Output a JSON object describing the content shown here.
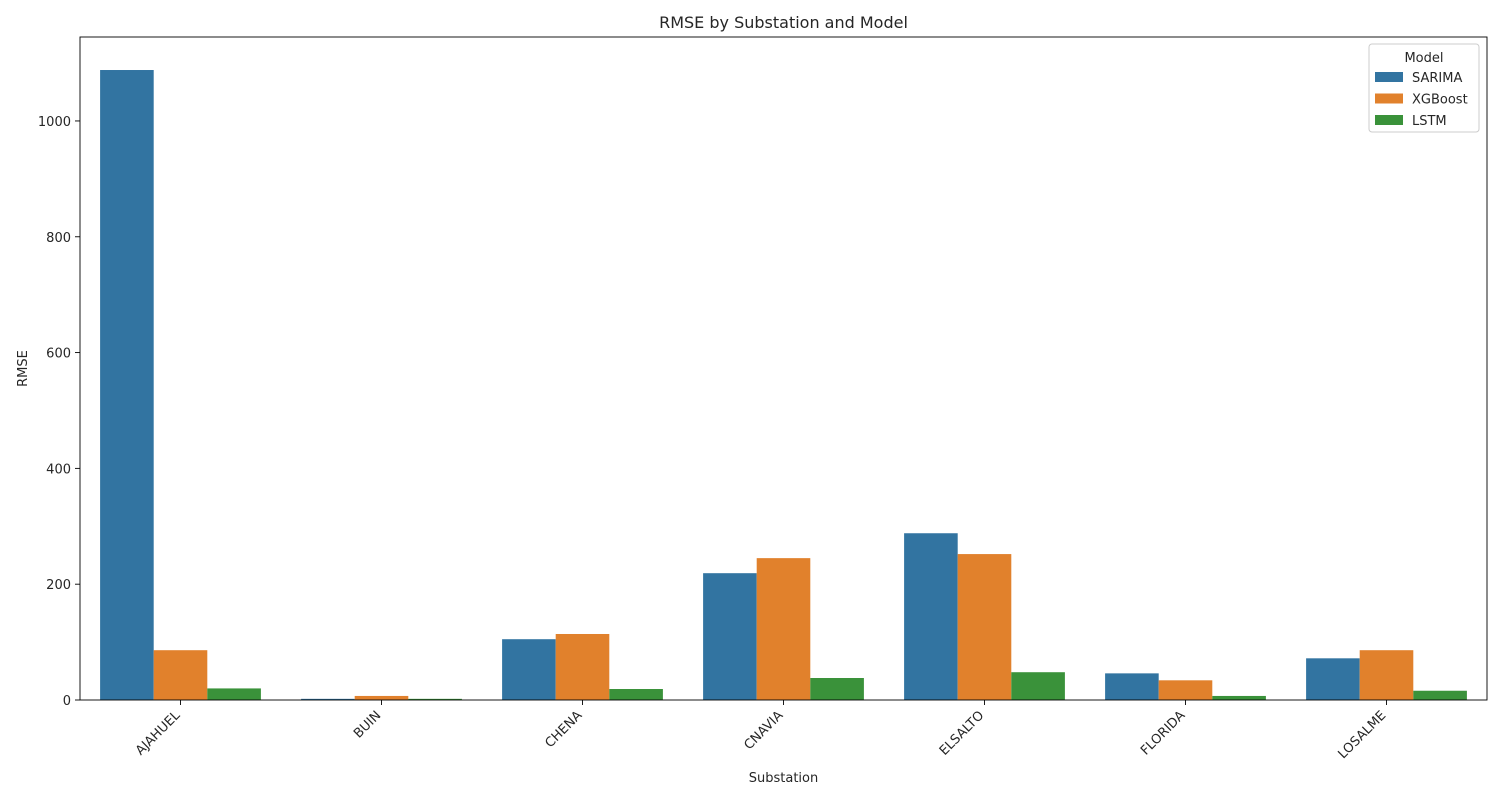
{
  "chart_data": {
    "type": "bar",
    "title": "RMSE by Substation and Model",
    "xlabel": "Substation",
    "ylabel": "RMSE",
    "ylim": [
      0,
      1145
    ],
    "yticks": [
      0,
      200,
      400,
      600,
      800,
      1000
    ],
    "categories": [
      "AJAHUEL",
      "BUIN",
      "CHENA",
      "CNAVIA",
      "ELSALTO",
      "FLORIDA",
      "LOSALME"
    ],
    "grid": false,
    "legend": {
      "title": "Model",
      "placement": "top-right"
    },
    "series": [
      {
        "name": "SARIMA",
        "color": "#3274a1",
        "values": [
          1088,
          2,
          105,
          219,
          288,
          46,
          72
        ]
      },
      {
        "name": "XGBoost",
        "color": "#e1812c",
        "values": [
          86,
          7,
          114,
          245,
          252,
          34,
          86
        ]
      },
      {
        "name": "LSTM",
        "color": "#3a923a",
        "values": [
          20,
          2,
          19,
          38,
          48,
          7,
          16
        ]
      }
    ]
  }
}
